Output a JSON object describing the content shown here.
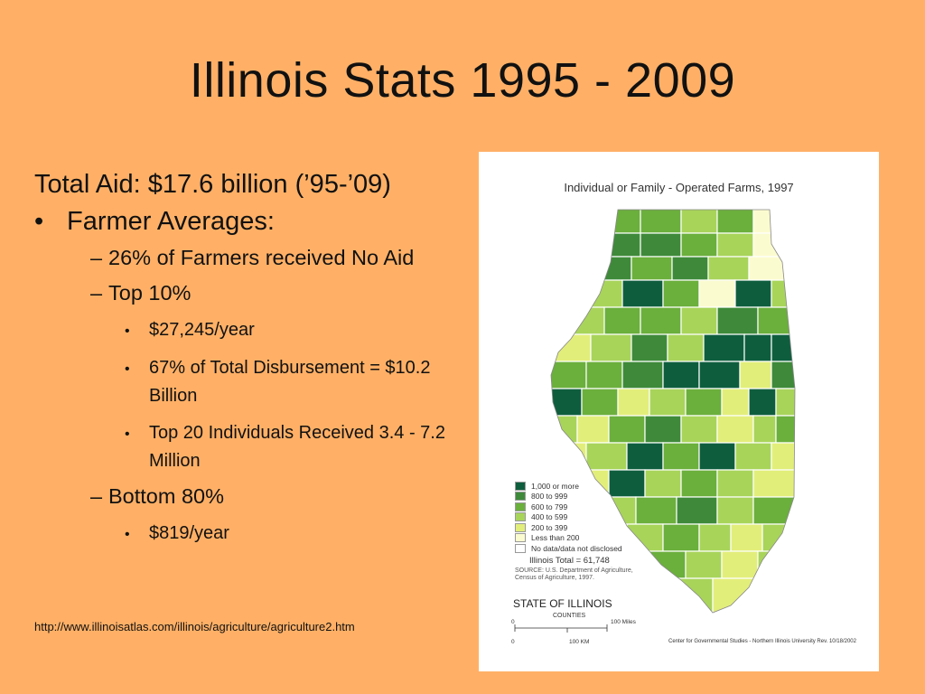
{
  "slide": {
    "title": "Illinois Stats 1995 - 2009",
    "total_aid": "Total Aid: $17.6 billion (’95-’09)",
    "bullet_main": "Farmer Averages:",
    "items": [
      "26% of Farmers received No Aid",
      "Top 10%",
      "$27,245/year",
      "67% of Total Disbursement = $10.2 Billion",
      "Top 20 Individuals Received 3.4 - 7.2 Million",
      "Bottom 80%",
      "$819/year"
    ],
    "url": "http://www.illinoisatlas.com/illinois/agriculture/agriculture2.htm"
  },
  "map": {
    "title": "Individual or Family - Operated Farms, 1997",
    "legend": [
      {
        "label": "1,000 or more",
        "color": "#0E5E3E"
      },
      {
        "label": "800 to 999",
        "color": "#3E8A3A"
      },
      {
        "label": "600 to 799",
        "color": "#6BAF3C"
      },
      {
        "label": "400 to 599",
        "color": "#A8D45A"
      },
      {
        "label": "200 to 399",
        "color": "#E2EE7A"
      },
      {
        "label": "Less than 200",
        "color": "#FBFBD0"
      },
      {
        "label": "No data/data not disclosed",
        "color": "#FFFFFF"
      }
    ],
    "total": "Illinois Total = 61,748",
    "source_1": "SOURCE: U.S. Department of Agriculture,",
    "source_2": "Census of Agriculture, 1997.",
    "state_label": "STATE OF ILLINOIS",
    "counties_label": "COUNTIES",
    "scale_miles": "100 Miles",
    "scale_km": "100 KM",
    "scale_zero": "0",
    "credit": "Center for Governmental Studies - Northern Illinois University   Rev. 10/18/2002"
  }
}
